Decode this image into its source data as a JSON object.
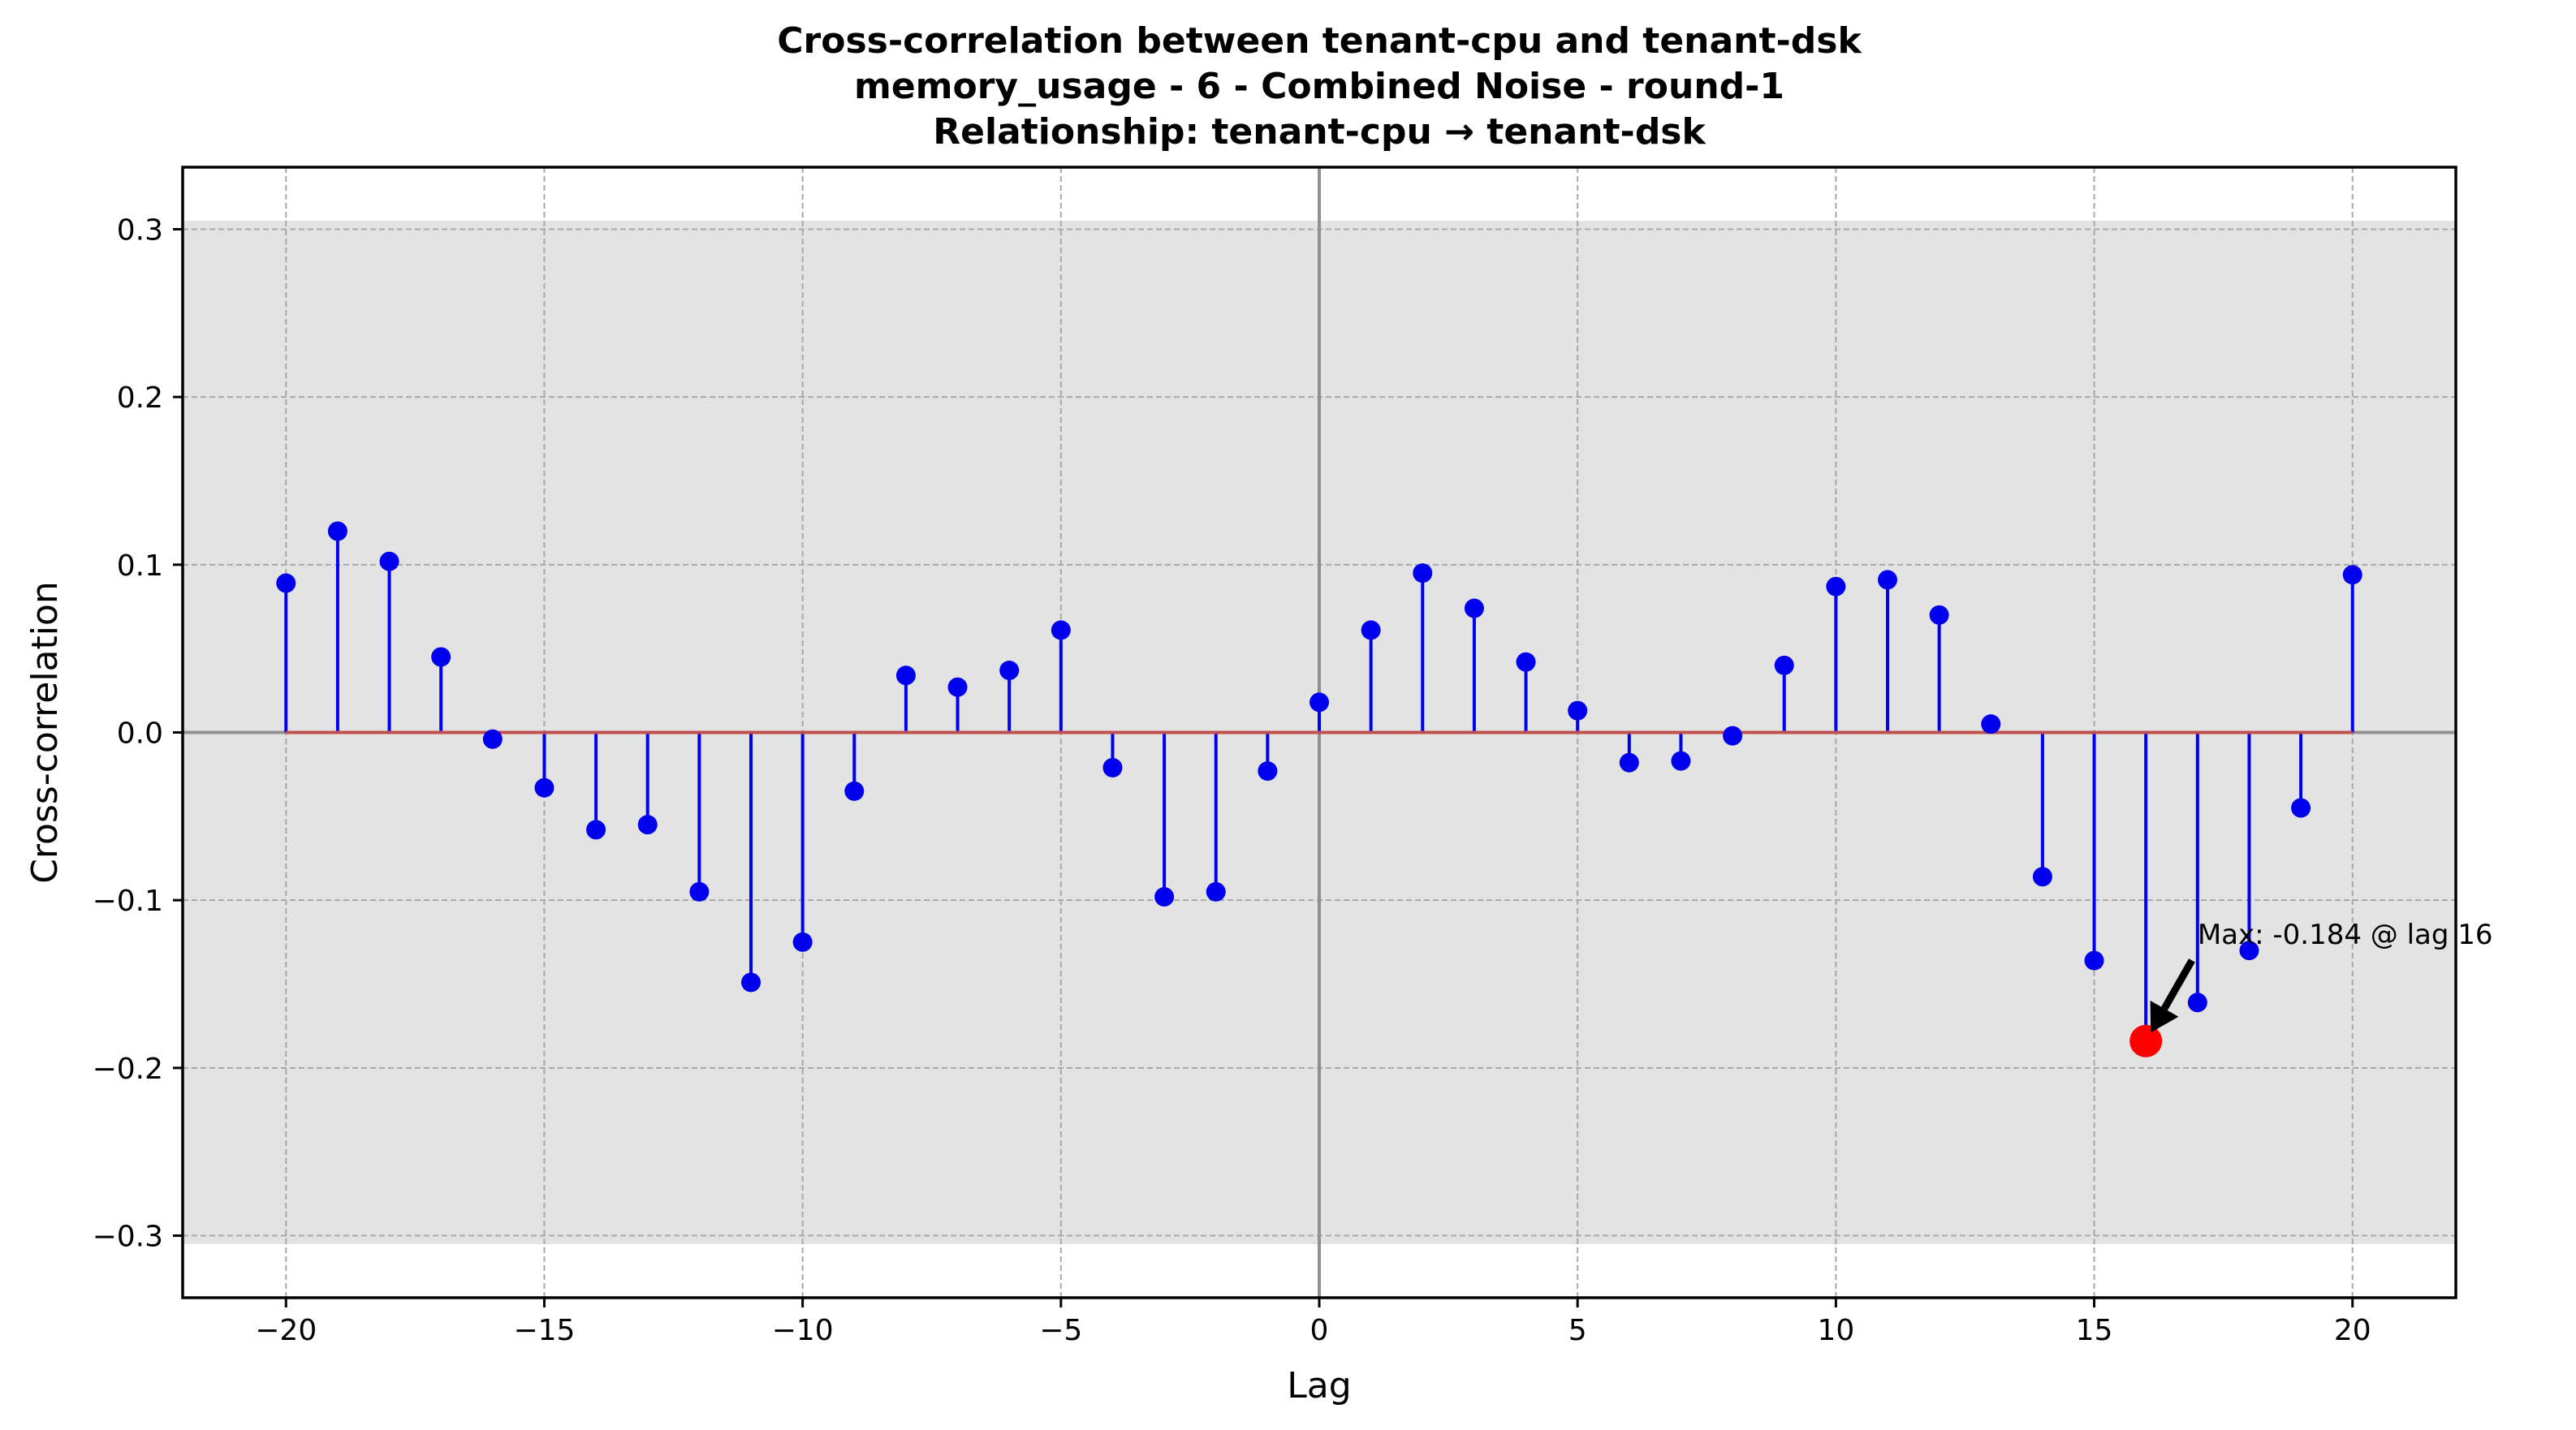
{
  "chart_data": {
    "type": "stem",
    "title_lines": [
      "Cross-correlation between tenant-cpu and tenant-dsk",
      "memory_usage - 6 - Combined Noise - round-1",
      "Relationship: tenant-cpu → tenant-dsk"
    ],
    "xlabel": "Lag",
    "ylabel": "Cross-correlation",
    "xlim": [
      -22,
      22
    ],
    "ylim": [
      -0.337,
      0.337
    ],
    "xticks": [
      -20,
      -15,
      -10,
      -5,
      0,
      5,
      10,
      15,
      20
    ],
    "xtick_labels": [
      "−20",
      "−15",
      "−10",
      "−5",
      "0",
      "5",
      "10",
      "15",
      "20"
    ],
    "yticks": [
      -0.3,
      -0.2,
      -0.1,
      0.0,
      0.1,
      0.2,
      0.3
    ],
    "ytick_labels": [
      "−0.3",
      "−0.2",
      "−0.1",
      "0.0",
      "0.1",
      "0.2",
      "0.3"
    ],
    "grid": true,
    "confidence_band": [
      -0.305,
      0.305
    ],
    "colors": {
      "stem": "#0000ee",
      "marker": "#0000ee",
      "baseline": "#c0504d",
      "max_marker": "#ff0000",
      "band": "#e3e3e3",
      "axis_zero": "#909090",
      "grid": "#a8a8a8"
    },
    "lags": [
      -20,
      -19,
      -18,
      -17,
      -16,
      -15,
      -14,
      -13,
      -12,
      -11,
      -10,
      -9,
      -8,
      -7,
      -6,
      -5,
      -4,
      -3,
      -2,
      -1,
      0,
      1,
      2,
      3,
      4,
      5,
      6,
      7,
      8,
      9,
      10,
      11,
      12,
      13,
      14,
      15,
      16,
      17,
      18,
      19,
      20
    ],
    "values": [
      0.089,
      0.12,
      0.102,
      0.045,
      -0.004,
      -0.033,
      -0.058,
      -0.055,
      -0.095,
      -0.149,
      -0.125,
      -0.035,
      0.034,
      0.027,
      0.037,
      0.061,
      -0.021,
      -0.098,
      -0.095,
      -0.023,
      0.018,
      0.061,
      0.095,
      0.074,
      0.042,
      0.013,
      -0.018,
      -0.017,
      -0.002,
      0.04,
      0.087,
      0.091,
      0.07,
      0.005,
      -0.086,
      -0.136,
      -0.184,
      -0.161,
      -0.13,
      -0.045,
      0.094
    ],
    "max_point": {
      "lag": 16,
      "value": -0.184
    },
    "annotation": {
      "text": "Max: -0.184 @ lag 16",
      "lag": 17,
      "value": -0.13
    }
  }
}
